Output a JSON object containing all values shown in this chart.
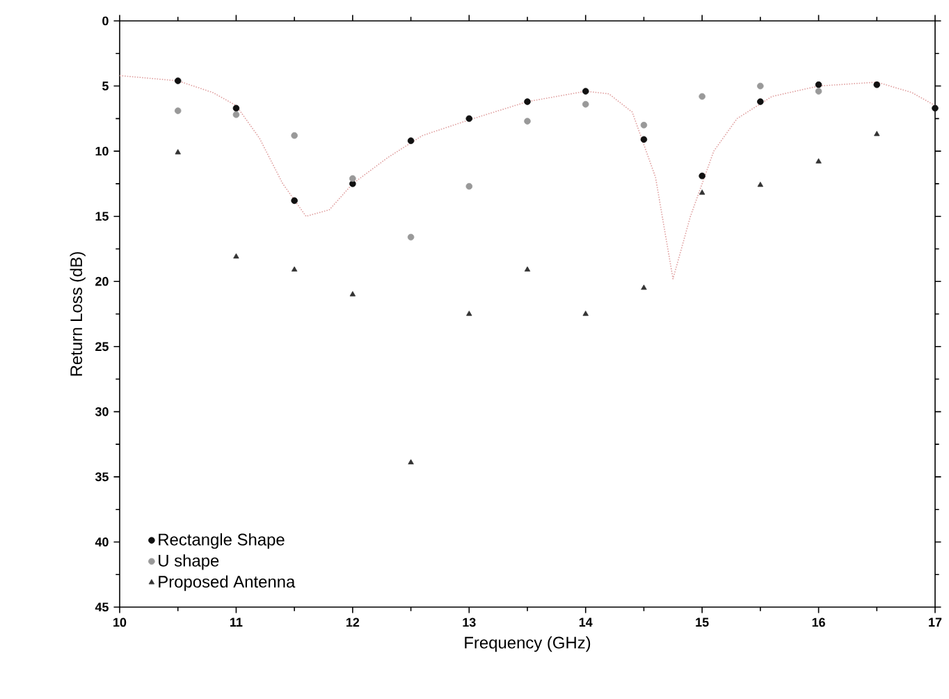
{
  "chart_data": {
    "type": "scatter",
    "xlabel": "Frequency (GHz)",
    "ylabel": "Return Loss (dB)",
    "xlim": [
      10,
      17
    ],
    "xticks": [
      10,
      11,
      12,
      13,
      14,
      15,
      16,
      17
    ],
    "ylim": [
      45,
      0
    ],
    "yticks": [
      0,
      5,
      10,
      15,
      20,
      25,
      30,
      35,
      40,
      45
    ],
    "legend": "bottom left",
    "grid": false,
    "series": [
      {
        "type": "line",
        "color": "#e0a0a0",
        "line_style": "dotted",
        "marker": "none",
        "x": [
          10,
          10.5,
          10.8,
          11,
          11.2,
          11.4,
          11.6,
          11.8,
          12,
          12.3,
          12.6,
          13,
          13.5,
          14,
          14.2,
          14.4,
          14.6,
          14.75,
          14.9,
          15.1,
          15.3,
          15.6,
          16,
          16.5,
          16.8,
          17
        ],
        "values": [
          4.2,
          4.6,
          5.5,
          6.5,
          9,
          12.5,
          15,
          14.5,
          12.5,
          10.5,
          8.8,
          7.6,
          6.2,
          5.4,
          5.6,
          7.0,
          12,
          19.8,
          15,
          10,
          7.5,
          5.8,
          5.0,
          4.7,
          5.5,
          6.5
        ]
      },
      {
        "name": "Rectangle Shape",
        "color": "#111111",
        "marker": "circle",
        "x": [
          10.5,
          11,
          11.5,
          12,
          12.5,
          13,
          13.5,
          14,
          14.5,
          15,
          15.5,
          16,
          16.5,
          17
        ],
        "values": [
          4.6,
          6.7,
          13.8,
          12.5,
          9.2,
          7.5,
          6.2,
          5.4,
          9.1,
          11.9,
          6.2,
          4.9,
          4.9,
          6.7
        ]
      },
      {
        "name": "U shape",
        "color": "#999999",
        "marker": "circle",
        "x": [
          10.5,
          11,
          11.5,
          12,
          12.5,
          13,
          13.5,
          14,
          14.5,
          15,
          15.5,
          16
        ],
        "values": [
          6.9,
          7.2,
          8.8,
          12.1,
          16.6,
          12.7,
          7.7,
          6.4,
          8.0,
          5.8,
          5.0,
          5.4
        ]
      },
      {
        "name": "Proposed Antenna",
        "color": "#333333",
        "marker": "triangle",
        "x": [
          10.5,
          11,
          11.5,
          12,
          12.5,
          13,
          13.5,
          14,
          14.5,
          15,
          15.5,
          16,
          16.5
        ],
        "values": [
          10.1,
          18.1,
          19.1,
          21.0,
          33.9,
          22.5,
          19.1,
          22.5,
          20.5,
          13.2,
          12.6,
          10.8,
          8.7
        ]
      }
    ]
  }
}
